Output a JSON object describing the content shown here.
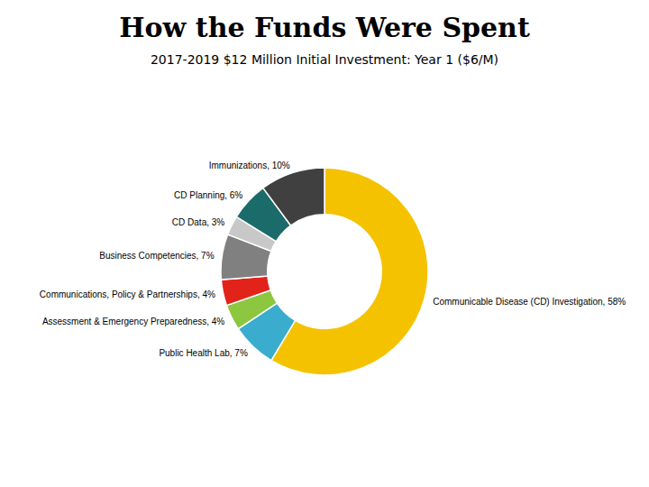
{
  "chart_data": {
    "type": "pie",
    "title": "How the Funds Were Spent",
    "subtitle": "2017-2019 $12 Million Initial Investment: Year 1 ($6/M)",
    "categories": [
      "Communicable Disease (CD) Investigation, 58%",
      "Public Health Lab, 7%",
      "Assessment & Emergency Preparedness, 4%",
      "Communications, Policy & Partnerships, 4%",
      "Business Competencies, 7%",
      "CD Data, 3%",
      "CD Planning, 6%",
      "Immunizations, 10%"
    ],
    "values": [
      58,
      7,
      4,
      4,
      7,
      3,
      6,
      10
    ],
    "colors": [
      "#F5C200",
      "#3AACCE",
      "#8DC63F",
      "#E2231A",
      "#808080",
      "#C8C8C8",
      "#1C6B6B",
      "#404040"
    ]
  }
}
